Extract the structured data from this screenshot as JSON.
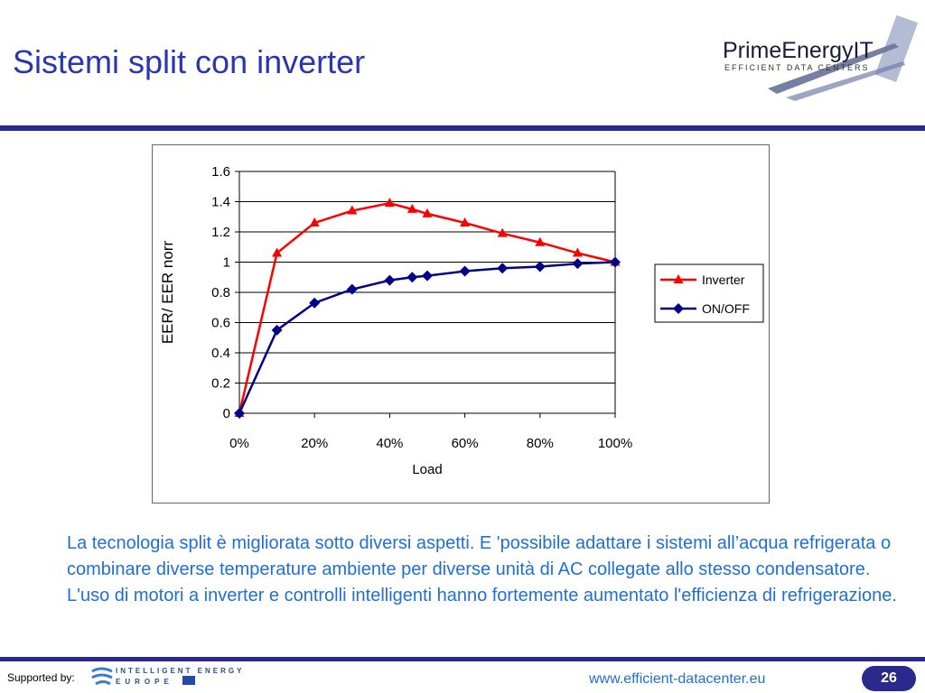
{
  "slide": {
    "title": "Sistemi split con inverter",
    "logo_text": "PrimeEnergyIT",
    "logo_subtitle": "EFFICIENT DATA CENTERS",
    "body": "La tecnologia split è migliorata sotto diversi aspetti. E 'possibile adattare i sistemi all’acqua refrigerata o combinare diverse temperature ambiente per diverse unità di AC collegate allo stesso condensatore. L'uso di motori a inverter e controlli intelligenti hanno fortemente aumentato l'efficienza di refrigerazione.",
    "footer": {
      "supported_by": "Supported by:",
      "ie_line1": "INTELLIGENT ENERGY",
      "ie_line2": "EUROPE",
      "url": "www.efficient-datacenter.eu",
      "page_number": "26"
    }
  },
  "colors": {
    "title": "#2a36b0",
    "rule": "#2a2a8c",
    "body_text": "#1f6fd6",
    "inverter": "#ff0000",
    "onoff": "#00008b"
  },
  "chart_data": {
    "type": "line",
    "title": "",
    "xlabel": "Load",
    "ylabel": "EER/ EER norr",
    "xlim": [
      0,
      100
    ],
    "ylim": [
      0,
      1.6
    ],
    "x_ticks": [
      "0%",
      "20%",
      "40%",
      "60%",
      "80%",
      "100%"
    ],
    "y_ticks": [
      "0",
      "0.2",
      "0.4",
      "0.6",
      "0.8",
      "1",
      "1.2",
      "1.4",
      "1.6"
    ],
    "grid": "horizontal",
    "legend_position": "right",
    "series": [
      {
        "name": "Inverter",
        "marker": "triangle",
        "color": "#ff0000",
        "x": [
          0,
          10,
          20,
          30,
          40,
          46,
          50,
          60,
          70,
          80,
          90,
          100
        ],
        "y": [
          0,
          1.06,
          1.26,
          1.34,
          1.39,
          1.35,
          1.32,
          1.26,
          1.19,
          1.13,
          1.06,
          1.0
        ]
      },
      {
        "name": "ON/OFF",
        "marker": "diamond",
        "color": "#00008b",
        "x": [
          0,
          10,
          20,
          30,
          40,
          46,
          50,
          60,
          70,
          80,
          90,
          100
        ],
        "y": [
          0,
          0.55,
          0.73,
          0.82,
          0.88,
          0.9,
          0.91,
          0.94,
          0.96,
          0.97,
          0.99,
          1.0
        ]
      }
    ]
  }
}
